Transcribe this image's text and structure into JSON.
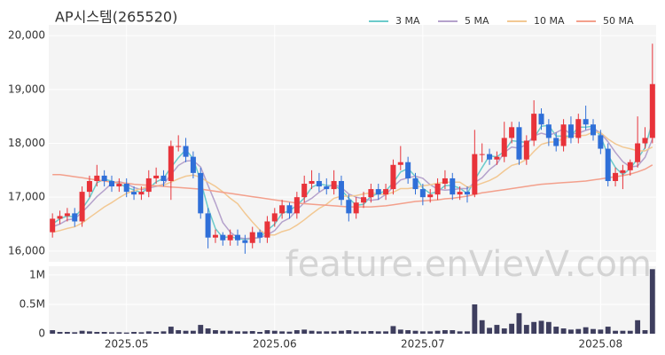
{
  "chart_data": {
    "type": "candlestick",
    "title": "AP시스템(265520)",
    "watermark": "feature.enVievV.com",
    "legend": "top-right",
    "up_color": "#e8333a",
    "down_color": "#2f6fd8",
    "grid": true,
    "categories": [
      null,
      null,
      null,
      null,
      null,
      null,
      null,
      null,
      null,
      null,
      "2025.05",
      null,
      null,
      null,
      null,
      null,
      null,
      null,
      null,
      null,
      null,
      null,
      null,
      null,
      null,
      null,
      null,
      null,
      null,
      null,
      "2025.06",
      null,
      null,
      null,
      null,
      null,
      null,
      null,
      null,
      null,
      null,
      null,
      null,
      null,
      null,
      null,
      null,
      null,
      null,
      null,
      "2025.07",
      null,
      null,
      null,
      null,
      null,
      null,
      null,
      null,
      null,
      null,
      null,
      null,
      null,
      null,
      null,
      null,
      null,
      null,
      null,
      null,
      null,
      null,
      null,
      "2025.08",
      null,
      null,
      null,
      null,
      null,
      null,
      null
    ],
    "open": [
      16350,
      16600,
      16650,
      16700,
      16550,
      17100,
      17300,
      17400,
      17300,
      17200,
      17250,
      17100,
      17050,
      17100,
      17350,
      17400,
      17300,
      17950,
      17950,
      17750,
      17450,
      16700,
      16250,
      16300,
      16200,
      16300,
      16200,
      16150,
      16350,
      16250,
      16550,
      16700,
      16850,
      16700,
      17000,
      17250,
      17300,
      17200,
      17150,
      17300,
      16950,
      16700,
      16900,
      17000,
      17150,
      17050,
      17150,
      17600,
      17650,
      17350,
      17150,
      17000,
      17050,
      17250,
      17350,
      17050,
      17100,
      17050,
      17800,
      17800,
      17700,
      17750,
      18100,
      18300,
      17700,
      18050,
      18550,
      18350,
      18100,
      17950,
      18350,
      18100,
      18450,
      18350,
      18150,
      17900,
      17300,
      17450,
      17500,
      17650,
      18000,
      18100
    ],
    "high": [
      16700,
      16750,
      16800,
      16800,
      17200,
      17400,
      17600,
      17500,
      17400,
      17350,
      17350,
      17200,
      17200,
      17500,
      17550,
      17500,
      18050,
      18150,
      18100,
      17850,
      17550,
      16800,
      16400,
      16350,
      16400,
      16400,
      16300,
      16450,
      16400,
      16650,
      16800,
      16950,
      16900,
      17100,
      17400,
      17500,
      17450,
      17350,
      17500,
      17400,
      17050,
      17000,
      17100,
      17250,
      17250,
      17250,
      17700,
      17950,
      17750,
      17450,
      17250,
      17150,
      17350,
      17500,
      17450,
      17200,
      17200,
      18250,
      18000,
      17900,
      17850,
      18400,
      18400,
      18400,
      18150,
      18800,
      18650,
      18450,
      18200,
      18450,
      18500,
      18550,
      18700,
      18450,
      18250,
      18000,
      17550,
      17600,
      17700,
      18500,
      18300,
      19850
    ],
    "low": [
      16250,
      16500,
      16550,
      16450,
      16450,
      17000,
      17200,
      17200,
      17100,
      17100,
      17000,
      16950,
      16950,
      17000,
      17250,
      17200,
      16950,
      17850,
      17650,
      17350,
      16600,
      16050,
      16150,
      16100,
      16100,
      16100,
      15950,
      16050,
      16150,
      16150,
      16450,
      16600,
      16600,
      16600,
      16900,
      17150,
      17100,
      17050,
      17050,
      16850,
      16550,
      16600,
      16800,
      16900,
      16950,
      16950,
      17050,
      17500,
      17250,
      17050,
      16850,
      16900,
      16950,
      17150,
      16950,
      16950,
      16900,
      17000,
      17650,
      17600,
      17600,
      17650,
      18000,
      17600,
      17600,
      17950,
      18250,
      17950,
      17850,
      17850,
      18000,
      18000,
      18250,
      18050,
      17800,
      17200,
      17200,
      17150,
      17400,
      17550,
      17900,
      18000
    ],
    "close": [
      16600,
      16650,
      16700,
      16550,
      17100,
      17300,
      17400,
      17300,
      17200,
      17250,
      17100,
      17050,
      17100,
      17350,
      17400,
      17300,
      17950,
      17950,
      17750,
      17450,
      16700,
      16250,
      16300,
      16200,
      16300,
      16200,
      16150,
      16350,
      16250,
      16550,
      16700,
      16850,
      16700,
      17000,
      17250,
      17300,
      17200,
      17150,
      17300,
      16950,
      16700,
      16900,
      17000,
      17150,
      17050,
      17150,
      17600,
      17650,
      17350,
      17150,
      17000,
      17050,
      17250,
      17350,
      17050,
      17100,
      17050,
      17800,
      17800,
      17700,
      17750,
      18100,
      18300,
      17700,
      18050,
      18550,
      18350,
      18100,
      17950,
      18350,
      18100,
      18450,
      18350,
      18150,
      17900,
      17300,
      17450,
      17500,
      17650,
      18000,
      18100,
      19100
    ],
    "series": [
      {
        "name": "3 MA",
        "color": "#6ccbcb",
        "values": [
          16500,
          16600,
          16650,
          16633,
          16783,
          16983,
          17267,
          17333,
          17300,
          17250,
          17183,
          17133,
          17083,
          17167,
          17283,
          17350,
          17550,
          17733,
          17883,
          17717,
          17300,
          16800,
          16417,
          16250,
          16267,
          16233,
          16217,
          16233,
          16250,
          16383,
          16500,
          16700,
          16750,
          16850,
          16983,
          17183,
          17250,
          17217,
          17217,
          17133,
          16983,
          16850,
          16867,
          17017,
          17067,
          17117,
          17267,
          17467,
          17533,
          17383,
          17167,
          17067,
          17100,
          17217,
          17217,
          17167,
          17067,
          17317,
          17550,
          17767,
          17750,
          17850,
          18050,
          18033,
          18017,
          18100,
          18317,
          18333,
          18133,
          18133,
          18133,
          18300,
          18300,
          18317,
          18133,
          17783,
          17550,
          17417,
          17533,
          17717,
          17917,
          18400
        ]
      },
      {
        "name": "5 MA",
        "color": "#b5a2cc",
        "values": [
          16450,
          16500,
          16580,
          16600,
          16720,
          16860,
          17010,
          17130,
          17260,
          17290,
          17250,
          17180,
          17140,
          17170,
          17200,
          17240,
          17420,
          17590,
          17670,
          17680,
          17560,
          17220,
          16890,
          16530,
          16350,
          16250,
          16230,
          16240,
          16250,
          16300,
          16380,
          16540,
          16610,
          16760,
          16900,
          16980,
          17090,
          17180,
          17240,
          17180,
          17060,
          17000,
          16970,
          16940,
          16960,
          17050,
          17190,
          17320,
          17360,
          17390,
          17350,
          17230,
          17150,
          17130,
          17140,
          17160,
          17160,
          17270,
          17360,
          17510,
          17620,
          17830,
          17930,
          17910,
          17980,
          18140,
          18190,
          18150,
          18200,
          18270,
          18170,
          18190,
          18240,
          18280,
          18190,
          18030,
          17830,
          17660,
          17560,
          17580,
          17740,
          18080
        ]
      },
      {
        "name": "10 MA",
        "color": "#f2c893",
        "values": [
          16350,
          16380,
          16420,
          16450,
          16520,
          16620,
          16720,
          16820,
          16900,
          16990,
          17070,
          17120,
          17160,
          17200,
          17210,
          17220,
          17280,
          17340,
          17390,
          17410,
          17370,
          17280,
          17200,
          17100,
          16980,
          16880,
          16700,
          16540,
          16390,
          16300,
          16300,
          16360,
          16400,
          16480,
          16580,
          16690,
          16790,
          16870,
          16980,
          17020,
          17020,
          17030,
          17060,
          17080,
          17060,
          17050,
          17090,
          17160,
          17160,
          17180,
          17210,
          17230,
          17260,
          17280,
          17280,
          17280,
          17190,
          17210,
          17260,
          17310,
          17380,
          17490,
          17590,
          17630,
          17700,
          17850,
          17980,
          18020,
          18030,
          18090,
          18130,
          18140,
          18150,
          18210,
          18200,
          18080,
          17990,
          17930,
          17900,
          17860,
          17860,
          17930
        ]
      },
      {
        "name": "50 MA",
        "color": "#f3a08c",
        "values": [
          17420,
          17420,
          17400,
          17380,
          17360,
          17340,
          17320,
          17300,
          17280,
          17270,
          17260,
          17240,
          17230,
          17220,
          17210,
          17200,
          17190,
          17180,
          17170,
          17160,
          17150,
          17130,
          17110,
          17090,
          17070,
          17050,
          17030,
          17010,
          16990,
          16970,
          16950,
          16930,
          16910,
          16890,
          16880,
          16870,
          16860,
          16850,
          16840,
          16830,
          16820,
          16820,
          16820,
          16820,
          16830,
          16840,
          16860,
          16880,
          16900,
          16920,
          16930,
          16940,
          16950,
          16970,
          16980,
          17000,
          17020,
          17050,
          17080,
          17100,
          17120,
          17140,
          17160,
          17180,
          17200,
          17220,
          17240,
          17250,
          17260,
          17270,
          17280,
          17290,
          17300,
          17320,
          17340,
          17360,
          17380,
          17400,
          17430,
          17470,
          17520,
          17600
        ]
      }
    ],
    "ylim": [
      15800,
      20200
    ],
    "yticks": [
      {
        "value": 16000,
        "label": "16,000"
      },
      {
        "value": 17000,
        "label": "17,000"
      },
      {
        "value": 18000,
        "label": "18,000"
      },
      {
        "value": 19000,
        "label": "19,000"
      },
      {
        "value": 20000,
        "label": "20,000"
      }
    ],
    "volume": {
      "color": "#3e3e5e",
      "values": [
        60000,
        30000,
        30000,
        25000,
        50000,
        40000,
        30000,
        30000,
        25000,
        25000,
        20000,
        30000,
        25000,
        40000,
        30000,
        40000,
        120000,
        60000,
        50000,
        50000,
        150000,
        90000,
        60000,
        50000,
        50000,
        40000,
        40000,
        45000,
        30000,
        60000,
        50000,
        40000,
        35000,
        60000,
        70000,
        50000,
        40000,
        40000,
        40000,
        50000,
        60000,
        40000,
        40000,
        45000,
        40000,
        40000,
        130000,
        70000,
        60000,
        50000,
        40000,
        40000,
        50000,
        60000,
        60000,
        40000,
        40000,
        500000,
        230000,
        100000,
        150000,
        90000,
        170000,
        350000,
        150000,
        200000,
        220000,
        200000,
        120000,
        90000,
        70000,
        80000,
        110000,
        80000,
        70000,
        120000,
        50000,
        50000,
        50000,
        230000,
        60000,
        1100000
      ],
      "ylim": [
        0,
        1150000
      ],
      "yticks": [
        0,
        {
          "value": 500000,
          "label": "0.5M"
        },
        {
          "value": 1000000,
          "label": "1M"
        }
      ]
    }
  }
}
